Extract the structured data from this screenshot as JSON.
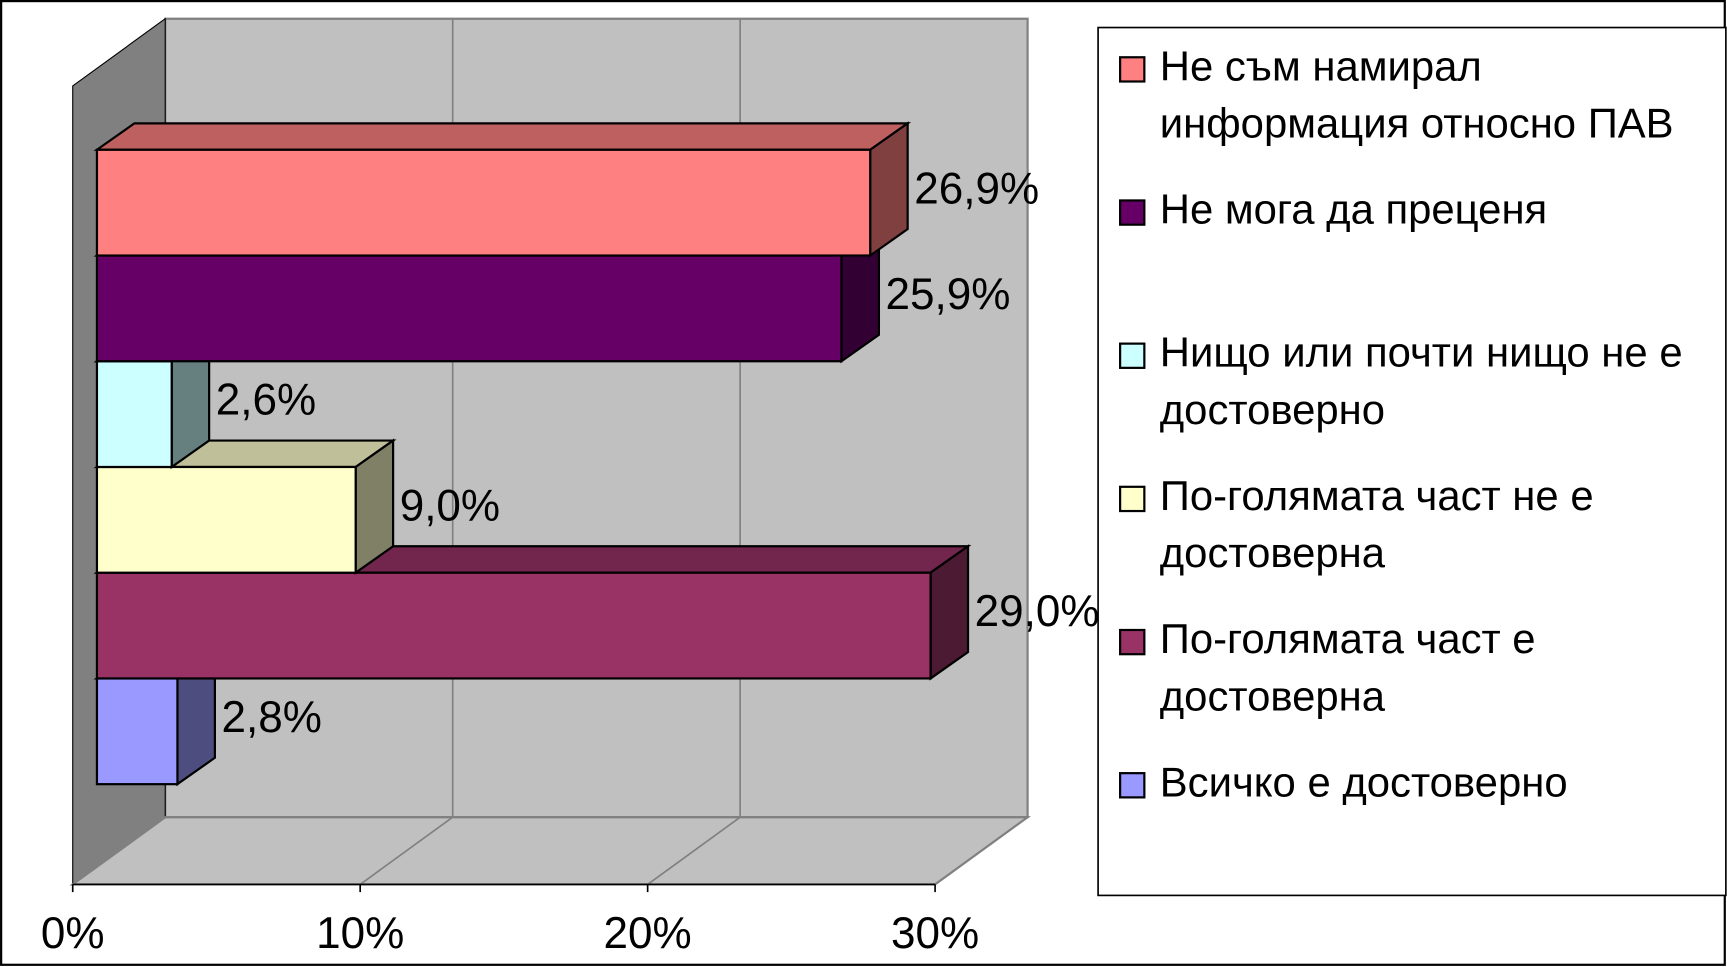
{
  "chart_data": {
    "type": "bar",
    "orientation": "horizontal",
    "categories": [
      "Не съм намирал информация относно ПАВ",
      "Не мога да преценя",
      "Нищо или почти нищо не е достоверно",
      "По-голямата част не е достоверна",
      "По-голямата част е достоверна",
      "Всичко е достоверно"
    ],
    "values": [
      26.9,
      25.9,
      2.6,
      9.0,
      29.0,
      2.8
    ],
    "value_labels": [
      "26,9%",
      "25,9%",
      "2,6%",
      "9,0%",
      "29,0%",
      "2,8%"
    ],
    "colors": [
      "#ff8080",
      "#660066",
      "#ccffff",
      "#ffffcc",
      "#993366",
      "#9999ff"
    ],
    "xlim": [
      0,
      30
    ],
    "xticks": [
      {
        "value": 0,
        "label": "0%"
      },
      {
        "value": 10,
        "label": "10%"
      },
      {
        "value": 20,
        "label": "20%"
      },
      {
        "value": 30,
        "label": "30%"
      }
    ],
    "grid": true,
    "legend": "right"
  }
}
